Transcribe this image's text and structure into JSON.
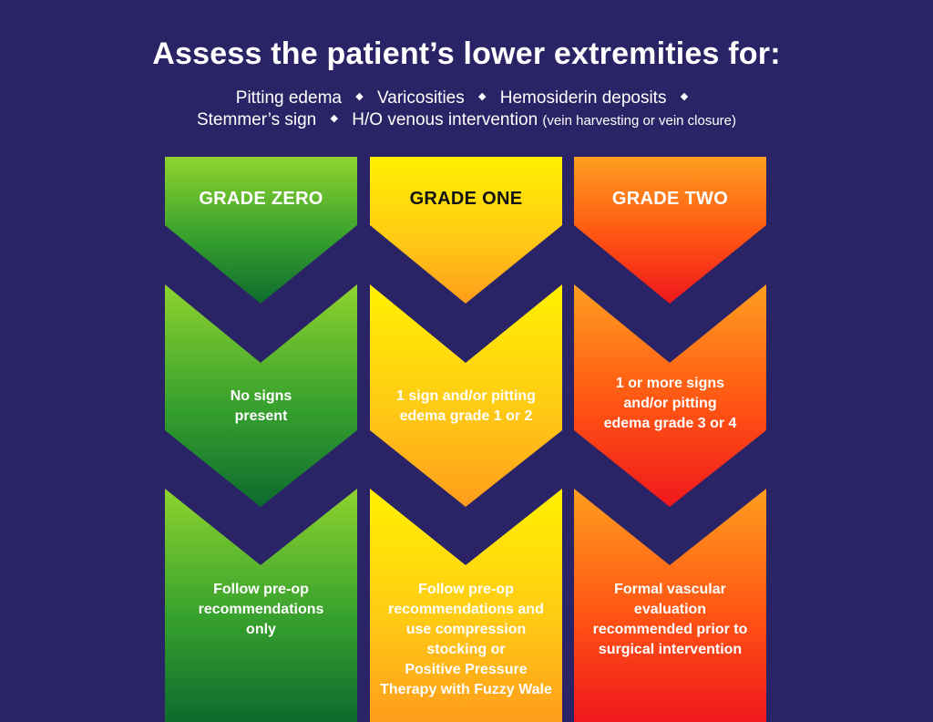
{
  "title": "Assess the patient’s lower extremities for:",
  "criteria": {
    "line1": [
      "Pitting edema",
      "Varicosities",
      "Hemosiderin deposits"
    ],
    "line2_prefix": [
      "Stemmer’s sign"
    ],
    "line2_main": "H/O venous intervention",
    "line2_note": "(vein harvesting or vein closure)"
  },
  "columns": [
    {
      "grade": "GRADE ZERO",
      "sign_text": "No signs\npresent",
      "action_text": "Follow pre-op\nrecommendations\nonly",
      "colors": [
        "#88c92f",
        "#4ea92f",
        "#1d7a36"
      ]
    },
    {
      "grade": "GRADE ONE",
      "sign_text": "1 sign and/or pitting\nedema grade 1 or 2",
      "action_text": "Follow pre-op\nrecommendations and\nuse compression\nstocking or\nPositive Pressure\nTherapy with Fuzzy Wale",
      "colors": [
        "#ffef14",
        "#ffc625",
        "#ff9f12"
      ]
    },
    {
      "grade": "GRADE TWO",
      "sign_text": "1 or more signs\nand/or pitting\nedema grade 3 or 4",
      "action_text": "Formal vascular\nevaluation\nrecommended prior to\nsurgical intervention",
      "colors": [
        "#ffa01f",
        "#ff5b16",
        "#f7271d"
      ]
    }
  ],
  "style": {
    "background": "#2a2466",
    "text": "#ffffff",
    "grade_one_text": "#111111"
  }
}
